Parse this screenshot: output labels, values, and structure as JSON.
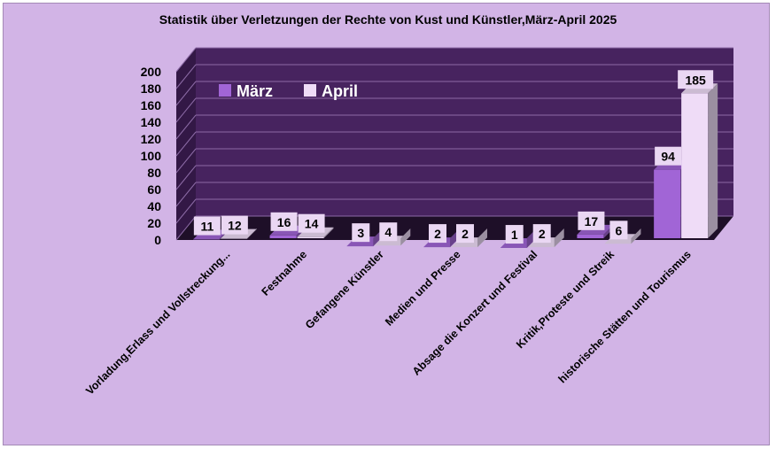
{
  "chart_data": {
    "type": "bar",
    "title": "Statistik über Verletzungen der Rechte von Kust und Künstler,März-April 2025",
    "categories": [
      "Vorladung,Erlass und  Vollstreckung...",
      "Festnahme",
      "Gefangene Künstler",
      "Medien und Presse",
      "Absage die Konzert und Festival",
      "Kritik,Proteste und  Streik",
      "historische Stätten und Tourismus"
    ],
    "series": [
      {
        "name": "März",
        "values": [
          11,
          16,
          3,
          2,
          1,
          17,
          94
        ],
        "color": "#a165d6"
      },
      {
        "name": "April",
        "values": [
          12,
          14,
          4,
          2,
          2,
          6,
          185
        ],
        "color": "#efdcf7"
      }
    ],
    "ylim": [
      0,
      200
    ],
    "yticks": [
      0,
      20,
      40,
      60,
      80,
      100,
      120,
      140,
      160,
      180,
      200
    ],
    "legend_position": "top-left",
    "grid": true,
    "plot_background": "#47235f",
    "frame_background": "#d2b4e6"
  }
}
